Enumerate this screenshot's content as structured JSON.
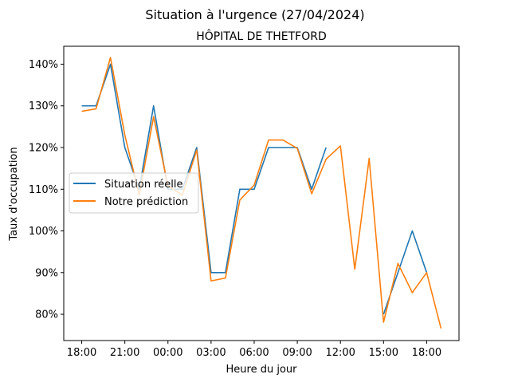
{
  "figure": {
    "suptitle": "Situation à l'urgence (27/04/2024)"
  },
  "chart_data": {
    "type": "line",
    "title": "HÔPITAL DE THETFORD",
    "xlabel": "Heure du jour",
    "ylabel": "Taux d'occupation",
    "x_ticks": [
      {
        "label": "18:00",
        "index": 0
      },
      {
        "label": "21:00",
        "index": 3
      },
      {
        "label": "00:00",
        "index": 6
      },
      {
        "label": "03:00",
        "index": 9
      },
      {
        "label": "06:00",
        "index": 12
      },
      {
        "label": "09:00",
        "index": 15
      },
      {
        "label": "12:00",
        "index": 18
      },
      {
        "label": "15:00",
        "index": 21
      },
      {
        "label": "18:00",
        "index": 24
      }
    ],
    "y_ticks": [
      80,
      90,
      100,
      110,
      120,
      130,
      140
    ],
    "y_tick_suffix": "%",
    "xlim": [
      -1.25,
      26.25
    ],
    "ylim": [
      73.7,
      144.3
    ],
    "x_hours": [
      "18:00",
      "19:00",
      "20:00",
      "21:00",
      "22:00",
      "23:00",
      "00:00",
      "01:00",
      "02:00",
      "03:00",
      "04:00",
      "05:00",
      "06:00",
      "07:00",
      "08:00",
      "09:00",
      "10:00",
      "11:00",
      "12:00",
      "13:00",
      "14:00",
      "15:00",
      "16:00",
      "17:00",
      "18:00",
      "19:00"
    ],
    "series": [
      {
        "name": "Situation réelle",
        "color": "#1f77b4",
        "values": [
          130,
          130,
          140,
          120,
          110,
          130,
          110,
          110,
          120,
          90,
          90,
          110,
          110,
          120,
          120,
          120,
          110,
          120,
          null,
          null,
          null,
          80,
          90,
          100,
          90,
          null
        ]
      },
      {
        "name": "Notre prédiction",
        "color": "#ff7f0e",
        "values": [
          128.7,
          129.3,
          141.6,
          123.0,
          108.6,
          127.4,
          110.8,
          108.6,
          119.4,
          88.0,
          88.7,
          107.4,
          111.0,
          121.8,
          121.8,
          119.8,
          108.9,
          117.2,
          120.4,
          90.8,
          117.4,
          78.1,
          92.2,
          85.2,
          90.0,
          76.6
        ]
      }
    ],
    "legend_position": "center-left",
    "grid": false
  }
}
